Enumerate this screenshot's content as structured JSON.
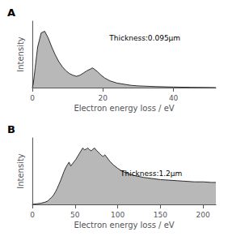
{
  "chart_data": [
    {
      "type": "area",
      "title": "A",
      "annotation": "Thickness:0.095μm",
      "x_label": "Electron energy loss / eV",
      "y_label": "Intensity",
      "color": "#b8b8b8",
      "xlim": [
        0,
        52
      ],
      "ylim": [
        0,
        1.18
      ],
      "xticks": [
        0,
        20,
        40
      ],
      "yticks": [],
      "tick_labels": "x",
      "grid": false,
      "x": [
        0,
        0.3,
        0.8,
        1.5,
        2.5,
        3.5,
        4.5,
        5.5,
        6.5,
        7.5,
        8.5,
        9.5,
        10.5,
        11.5,
        12.5,
        13.5,
        14.5,
        15.5,
        16.5,
        17.0,
        17.5,
        18.5,
        19.5,
        20.5,
        22,
        24,
        26,
        28,
        30,
        35,
        40,
        45,
        50,
        52
      ],
      "values": [
        0,
        0.08,
        0.35,
        0.72,
        0.97,
        1.0,
        0.88,
        0.72,
        0.58,
        0.46,
        0.37,
        0.3,
        0.25,
        0.22,
        0.2,
        0.22,
        0.26,
        0.3,
        0.33,
        0.35,
        0.33,
        0.28,
        0.22,
        0.17,
        0.12,
        0.08,
        0.06,
        0.04,
        0.03,
        0.018,
        0.01,
        0.005,
        0.002,
        0.0
      ]
    },
    {
      "type": "area",
      "title": "B",
      "annotation": "Thickness:1.2μm",
      "x_label": "Electron energy loss / eV",
      "y_label": "Intensity",
      "color": "#b8b8b8",
      "xlim": [
        0,
        215
      ],
      "ylim": [
        0,
        1.18
      ],
      "xticks": [
        0,
        50,
        100,
        150,
        200
      ],
      "yticks": [],
      "tick_labels": "x",
      "grid": false,
      "x": [
        0,
        5,
        10,
        15,
        18,
        20,
        23,
        25,
        27,
        29,
        31,
        33,
        35,
        37,
        39,
        41,
        43,
        45,
        47,
        49,
        51,
        53,
        55,
        57,
        59,
        61,
        63,
        65,
        67,
        69,
        71,
        73,
        75,
        77,
        79,
        81,
        83,
        85,
        88,
        91,
        95,
        100,
        105,
        110,
        115,
        120,
        130,
        140,
        150,
        160,
        170,
        180,
        190,
        200,
        210,
        215
      ],
      "values": [
        0,
        0.01,
        0.02,
        0.04,
        0.06,
        0.09,
        0.13,
        0.17,
        0.22,
        0.28,
        0.35,
        0.42,
        0.5,
        0.58,
        0.65,
        0.7,
        0.75,
        0.68,
        0.72,
        0.76,
        0.8,
        0.85,
        0.9,
        0.95,
        1.0,
        0.97,
        0.98,
        1.0,
        0.97,
        0.95,
        0.98,
        1.0,
        0.96,
        0.93,
        0.9,
        0.87,
        0.85,
        0.88,
        0.82,
        0.76,
        0.7,
        0.64,
        0.59,
        0.56,
        0.53,
        0.51,
        0.48,
        0.46,
        0.44,
        0.43,
        0.42,
        0.41,
        0.4,
        0.4,
        0.39,
        0.39
      ]
    }
  ]
}
